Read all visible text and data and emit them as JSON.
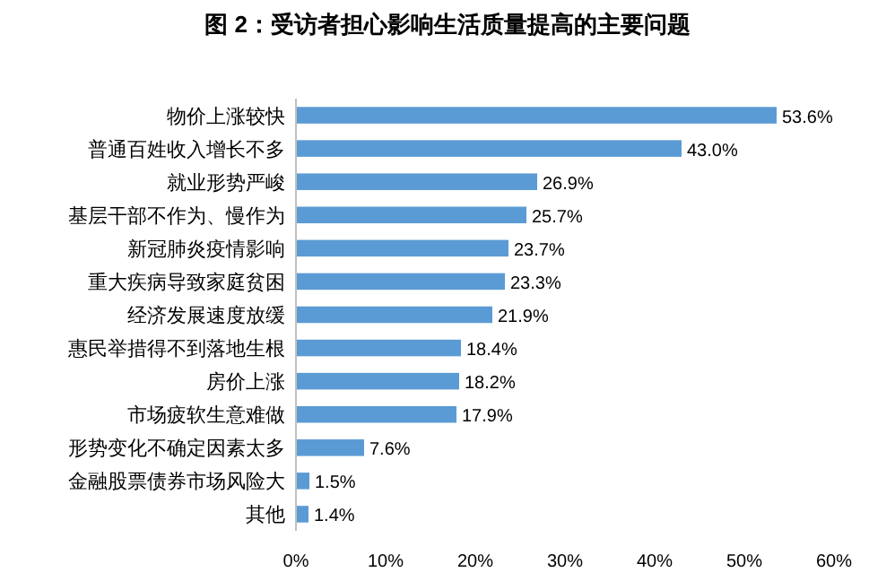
{
  "chart_data": {
    "type": "bar",
    "orientation": "horizontal",
    "title": "图 2：受访者担心影响生活质量提高的主要问题",
    "categories": [
      "物价上涨较快",
      "普通百姓收入增长不多",
      "就业形势严峻",
      "基层干部不作为、慢作为",
      "新冠肺炎疫情影响",
      "重大疾病导致家庭贫困",
      "经济发展速度放缓",
      "惠民举措得不到落地生根",
      "房价上涨",
      "市场疲软生意难做",
      "形势变化不确定因素太多",
      "金融股票债券市场风险大",
      "其他"
    ],
    "values": [
      53.6,
      43.0,
      26.9,
      25.7,
      23.7,
      23.3,
      21.9,
      18.4,
      18.2,
      17.9,
      7.6,
      1.5,
      1.4
    ],
    "value_labels": [
      "53.6%",
      "43.0%",
      "26.9%",
      "25.7%",
      "23.7%",
      "23.3%",
      "21.9%",
      "18.4%",
      "18.2%",
      "17.9%",
      "7.6%",
      "1.5%",
      "1.4%"
    ],
    "color": "#5b9bd5",
    "xlim": [
      0,
      60
    ],
    "xticks": [
      {
        "value": 0,
        "label": "0%"
      },
      {
        "value": 10,
        "label": "10%"
      },
      {
        "value": 20,
        "label": "20%"
      },
      {
        "value": 30,
        "label": "30%"
      },
      {
        "value": 40,
        "label": "40%"
      },
      {
        "value": 50,
        "label": "50%"
      },
      {
        "value": 60,
        "label": "60%"
      }
    ]
  }
}
